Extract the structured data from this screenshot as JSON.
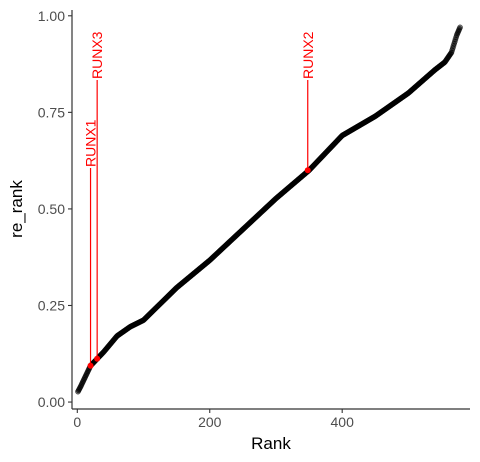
{
  "chart_data": {
    "type": "scatter",
    "xlabel": "Rank",
    "ylabel": "re_rank",
    "xlim": [
      -8,
      593
    ],
    "ylim": [
      -0.018,
      1.015
    ],
    "x_ticks": [
      {
        "value": 0,
        "label": "0"
      },
      {
        "value": 200,
        "label": "200"
      },
      {
        "value": 400,
        "label": "400"
      }
    ],
    "y_ticks": [
      {
        "value": 0,
        "label": "0.00"
      },
      {
        "value": 0.25,
        "label": "0.25"
      },
      {
        "value": 0.5,
        "label": "0.50"
      },
      {
        "value": 0.75,
        "label": "0.75"
      },
      {
        "value": 1,
        "label": "1.00"
      }
    ],
    "grid": false,
    "point_color": "#000000",
    "highlight_color": "#ff0000",
    "curve": {
      "n_points": 578,
      "x_range": [
        1,
        578
      ],
      "profile_x": [
        1,
        5,
        20,
        30,
        40,
        60,
        80,
        100,
        150,
        200,
        250,
        300,
        350,
        400,
        450,
        500,
        540,
        555,
        565,
        573,
        578
      ],
      "profile_y": [
        0.027,
        0.04,
        0.094,
        0.112,
        0.13,
        0.171,
        0.195,
        0.212,
        0.296,
        0.367,
        0.447,
        0.527,
        0.6,
        0.69,
        0.74,
        0.8,
        0.86,
        0.88,
        0.905,
        0.95,
        0.97
      ]
    },
    "annotations": [
      {
        "label": "RUNX1",
        "x": 20,
        "y": 0.094
      },
      {
        "label": "RUNX3",
        "x": 30,
        "y": 0.112
      },
      {
        "label": "RUNX2",
        "x": 348,
        "y": 0.6
      }
    ]
  }
}
